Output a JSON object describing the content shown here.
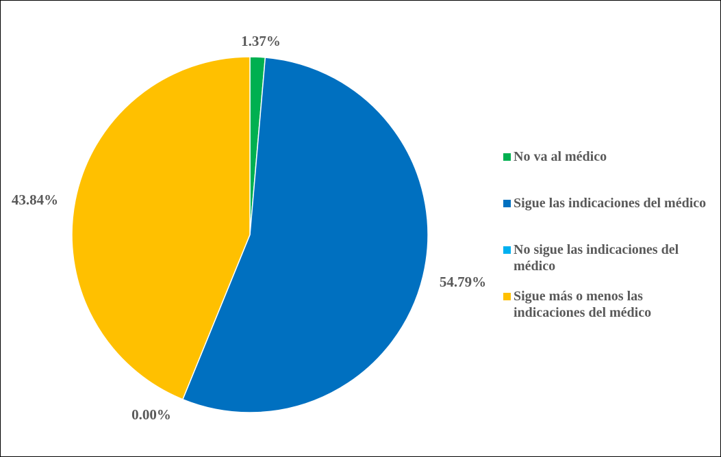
{
  "chart_data": {
    "type": "pie",
    "categories": [
      "No va al médico",
      "Sigue las indicaciones del médico",
      "No sigue las indicaciones del médico",
      "Sigue más o menos las indicaciones del médico"
    ],
    "values": [
      1.37,
      54.79,
      0.0,
      43.84
    ],
    "data_labels": [
      "1.37%",
      "54.79%",
      "0.00%",
      "43.84%"
    ],
    "colors": [
      "#00B050",
      "#0070C0",
      "#00B0F0",
      "#FFC000"
    ],
    "legend_position": "right",
    "title": ""
  }
}
